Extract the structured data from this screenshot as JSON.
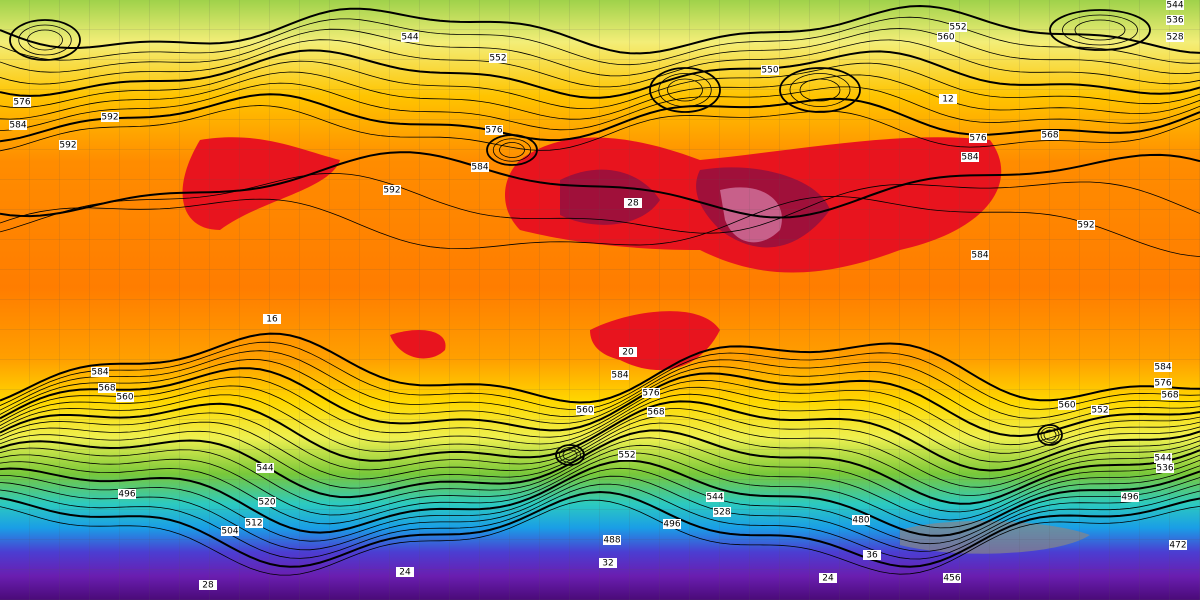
{
  "map": {
    "contour_labels": [
      "544",
      "552",
      "560",
      "544",
      "536",
      "528",
      "552",
      "576",
      "584",
      "592",
      "592",
      "584",
      "592",
      "576",
      "550",
      "568",
      "576",
      "584",
      "592",
      "584",
      "584",
      "568",
      "560",
      "584",
      "576",
      "568",
      "560",
      "552",
      "544",
      "520",
      "512",
      "504",
      "496",
      "544",
      "528",
      "496",
      "488",
      "480",
      "496",
      "472",
      "560",
      "552",
      "584",
      "576",
      "568",
      "456",
      "544",
      "536"
    ],
    "temperature_labels": [
      "32",
      "24",
      "28",
      "36",
      "24",
      "16",
      "20",
      "28",
      "12"
    ]
  }
}
